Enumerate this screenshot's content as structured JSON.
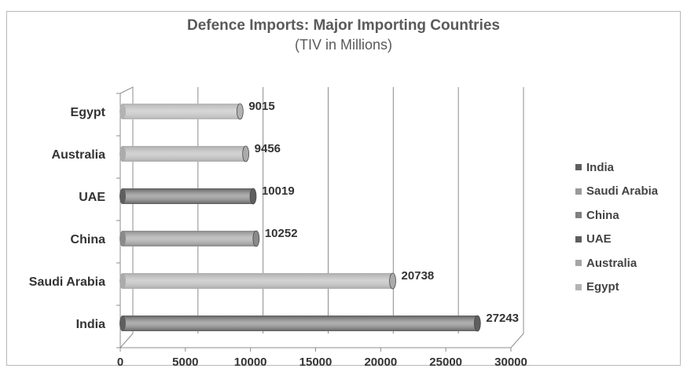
{
  "chart_data": {
    "type": "bar",
    "orientation": "horizontal",
    "title": "Defence Imports: Major Importing Countries",
    "subtitle": "(TIV  in Millions)",
    "categories": [
      "India",
      "Saudi Arabia",
      "China",
      "UAE",
      "Australia",
      "Egypt"
    ],
    "values": [
      27243,
      20738,
      10252,
      10019,
      9456,
      9015
    ],
    "bar_colors": [
      "#5e5e5e",
      "#ababab",
      "#8a8a8a",
      "#5e5e5e",
      "#ababab",
      "#b3b3b3"
    ],
    "xlim": [
      0,
      30000
    ],
    "xticks": [
      "0",
      "5000",
      "10000",
      "15000",
      "20000",
      "25000",
      "30000"
    ],
    "grid": true,
    "legend_position": "right",
    "legend": [
      {
        "label": "India",
        "color": "#5e5e5e"
      },
      {
        "label": "Saudi Arabia",
        "color": "#9a9a9a"
      },
      {
        "label": "China",
        "color": "#808080"
      },
      {
        "label": "UAE",
        "color": "#5e5e5e"
      },
      {
        "label": "Australia",
        "color": "#a5a5a5"
      },
      {
        "label": "Egypt",
        "color": "#b3b3b3"
      }
    ]
  }
}
